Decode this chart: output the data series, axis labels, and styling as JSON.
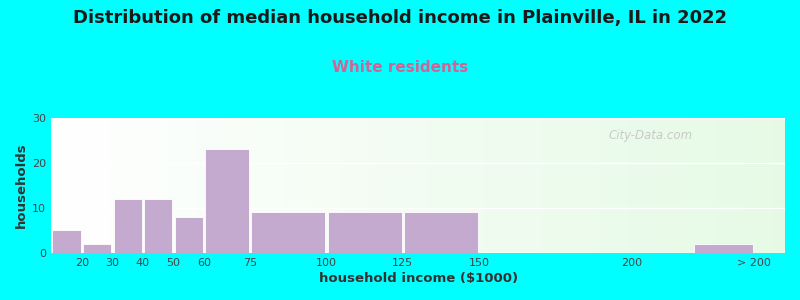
{
  "title": "Distribution of median household income in Plainville, IL in 2022",
  "subtitle": "White residents",
  "xlabel": "household income ($1000)",
  "ylabel": "households",
  "background_fig": "#00FFFF",
  "bar_color": "#C4AACF",
  "values": [
    5,
    2,
    12,
    12,
    8,
    23,
    9,
    9,
    9,
    0,
    2
  ],
  "ylim": [
    0,
    30
  ],
  "yticks": [
    0,
    10,
    20,
    30
  ],
  "title_fontsize": 13,
  "subtitle_fontsize": 11,
  "subtitle_color": "#CC6699",
  "watermark": "City-Data.com",
  "tick_positions": [
    20,
    30,
    40,
    50,
    60,
    75,
    100,
    125,
    150,
    200,
    240
  ],
  "tick_labels": [
    "20",
    "30",
    "40",
    "50",
    "60",
    "75",
    "100",
    "125",
    "150",
    "200",
    "> 200"
  ],
  "bar_lefts": [
    10,
    20,
    30,
    40,
    50,
    60,
    75,
    100,
    125,
    150,
    220
  ],
  "bar_widths": [
    10,
    10,
    10,
    10,
    10,
    15,
    25,
    25,
    25,
    50,
    20
  ],
  "xlim": [
    10,
    250
  ]
}
